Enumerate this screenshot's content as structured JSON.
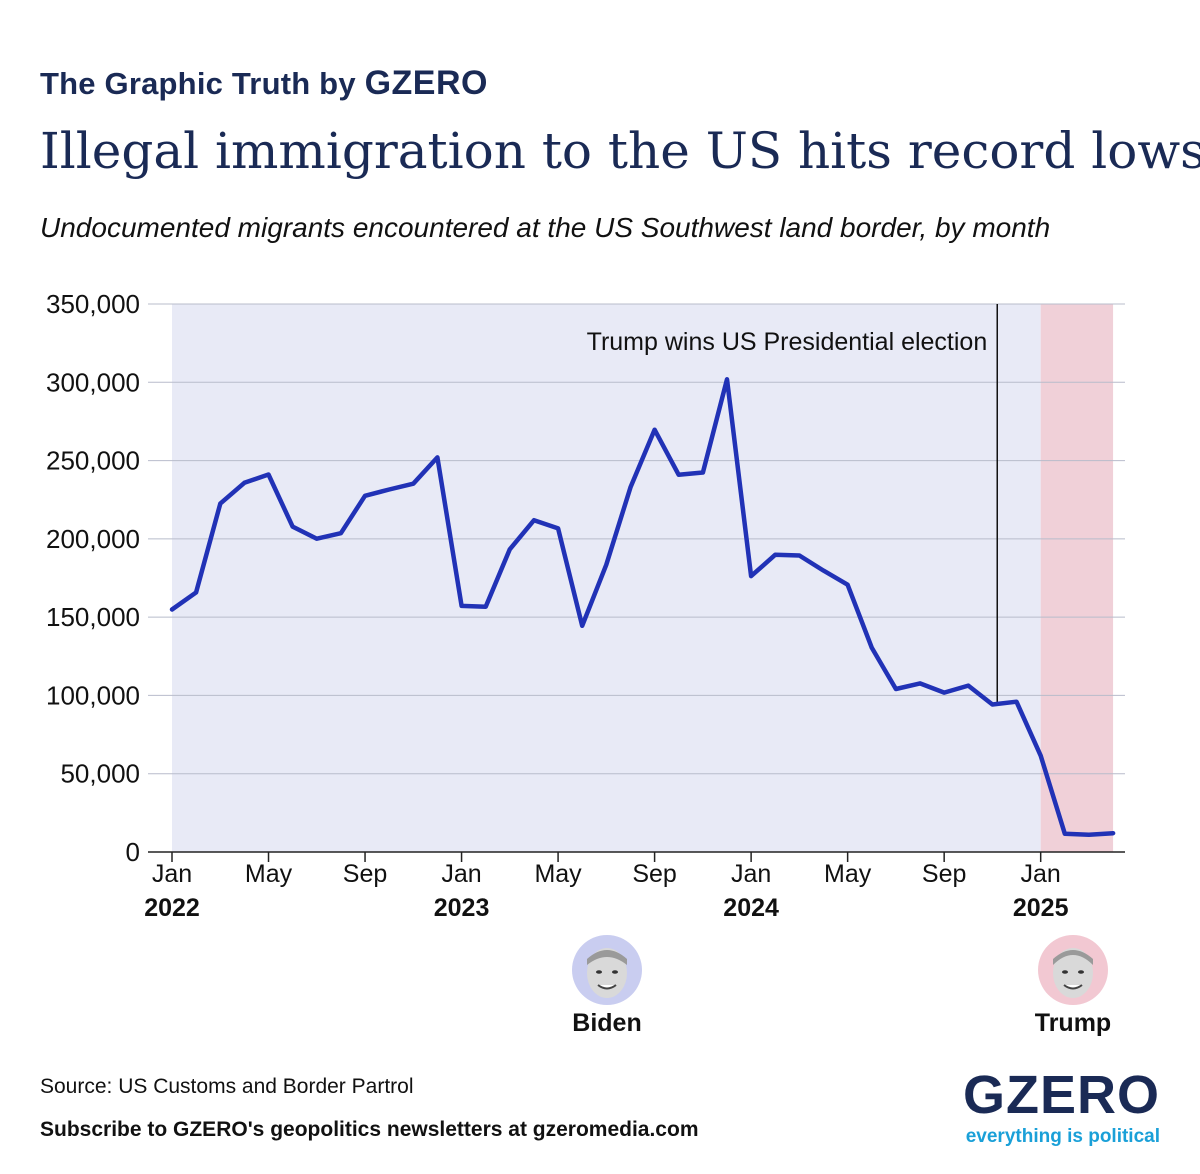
{
  "header": {
    "brand_prefix": "The Graphic Truth by",
    "brand_name": "GZERO",
    "title": "Illegal immigration to the US hits record lows",
    "subtitle": "Undocumented migrants encountered at the US Southwest land border, by month"
  },
  "chart_data": {
    "type": "line",
    "title": "Illegal immigration to the US hits record lows",
    "subtitle": "Undocumented migrants encountered at the US Southwest land border, by month",
    "ylim": [
      0,
      350000
    ],
    "yticks": [
      0,
      50000,
      100000,
      150000,
      200000,
      250000,
      300000,
      350000
    ],
    "ytick_labels": [
      "0",
      "50,000",
      "100,000",
      "150,000",
      "200,000",
      "250,000",
      "300,000",
      "350,000"
    ],
    "grid": true,
    "x": [
      "2022-01",
      "2022-02",
      "2022-03",
      "2022-04",
      "2022-05",
      "2022-06",
      "2022-07",
      "2022-08",
      "2022-09",
      "2022-10",
      "2022-11",
      "2022-12",
      "2023-01",
      "2023-02",
      "2023-03",
      "2023-04",
      "2023-05",
      "2023-06",
      "2023-07",
      "2023-08",
      "2023-09",
      "2023-10",
      "2023-11",
      "2023-12",
      "2024-01",
      "2024-02",
      "2024-03",
      "2024-04",
      "2024-05",
      "2024-06",
      "2024-07",
      "2024-08",
      "2024-09",
      "2024-10",
      "2024-11",
      "2024-12",
      "2025-01",
      "2025-02",
      "2025-03",
      "2025-04"
    ],
    "series": [
      {
        "color": "#2132b6",
        "values": [
          154900,
          165800,
          222500,
          235800,
          241100,
          207800,
          200100,
          203600,
          227500,
          231500,
          235200,
          252000,
          157200,
          156600,
          193300,
          211900,
          206700,
          144500,
          183500,
          232900,
          269700,
          240900,
          242400,
          301900,
          176200,
          189900,
          189400,
          179700,
          170700,
          130400,
          104100,
          107700,
          101800,
          106300,
          94200,
          96000,
          61500,
          11700,
          11000,
          12000
        ]
      }
    ],
    "x_ticks": [
      {
        "month": "Jan",
        "year": "2022",
        "index": 0
      },
      {
        "month": "May",
        "year": "",
        "index": 4
      },
      {
        "month": "Sep",
        "year": "",
        "index": 8
      },
      {
        "month": "Jan",
        "year": "2023",
        "index": 12
      },
      {
        "month": "May",
        "year": "",
        "index": 16
      },
      {
        "month": "Sep",
        "year": "",
        "index": 20
      },
      {
        "month": "Jan",
        "year": "2024",
        "index": 24
      },
      {
        "month": "May",
        "year": "",
        "index": 28
      },
      {
        "month": "Sep",
        "year": "",
        "index": 32
      },
      {
        "month": "Jan",
        "year": "2025",
        "index": 36
      }
    ],
    "periods": [
      {
        "name": "Biden",
        "start_index": 0,
        "end_index": 36,
        "color": "#e8eaf6"
      },
      {
        "name": "Trump",
        "start_index": 36,
        "end_index": 39,
        "color": "#f0d0d8"
      }
    ],
    "annotation": {
      "text": "Trump wins US Presidential election",
      "at_index": 34.2
    }
  },
  "leaders": {
    "biden": {
      "label": "Biden",
      "ring_color": "#c9cdf0"
    },
    "trump": {
      "label": "Trump",
      "ring_color": "#f2c8d2"
    }
  },
  "footer": {
    "source": "Source: US Customs and Border Partrol",
    "subscribe": "Subscribe to GZERO's geopolitics newsletters at gzeromedia.com",
    "logo": "GZERO",
    "tagline": "everything is political"
  },
  "colors": {
    "navy": "#1a2a55",
    "line": "#2132b6",
    "accent_blue": "#1aa0d8"
  }
}
